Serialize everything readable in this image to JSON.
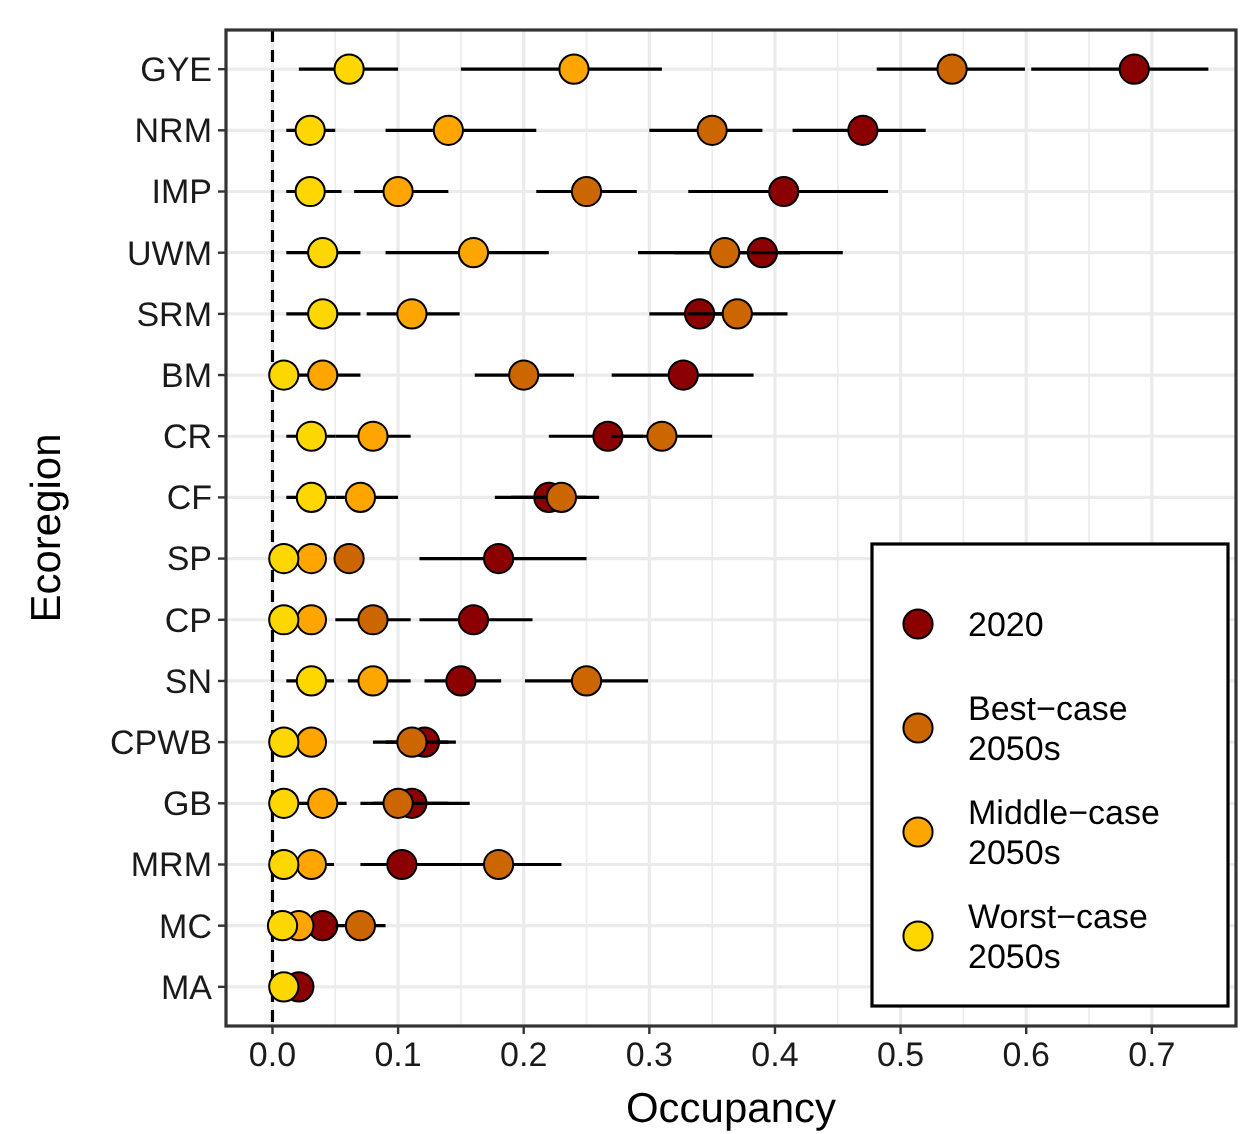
{
  "chart_data": {
    "type": "scatter",
    "orientation": "horizontal",
    "xlabel": "Occupancy",
    "ylabel": "Ecoregion",
    "categories": [
      "GYE",
      "NRM",
      "IMP",
      "UWM",
      "SRM",
      "BM",
      "CR",
      "CF",
      "SP",
      "CP",
      "SN",
      "CPWB",
      "GB",
      "MRM",
      "MC",
      "MA"
    ],
    "xlim": [
      -0.037,
      0.767
    ],
    "xticks": [
      {
        "value": 0,
        "label": "0.0"
      },
      0.1,
      0.2,
      0.3,
      0.4,
      0.5,
      0.6,
      {
        "value": 0.7,
        "label": "0.7"
      }
    ],
    "grid": true,
    "legend": "bottom right",
    "marker": "circle",
    "ref_lines": [
      {
        "axis": "x",
        "value": 0,
        "line_style": "dashed",
        "color": "#000000"
      }
    ],
    "series": [
      {
        "name": "2020",
        "color": "#8b0000",
        "values": [
          0.686,
          0.47,
          0.407,
          0.39,
          0.34,
          0.327,
          0.267,
          0.22,
          0.18,
          0.16,
          0.15,
          0.121,
          0.111,
          0.103,
          0.04,
          0.021
        ],
        "errors": [
          [
            0.604,
            0.745
          ],
          [
            0.414,
            0.52
          ],
          [
            0.331,
            0.49
          ],
          [
            0.32,
            0.454
          ],
          [
            0.3,
            0.38
          ],
          [
            0.27,
            0.383
          ],
          [
            0.22,
            0.295
          ],
          [
            0.177,
            0.25
          ],
          [
            0.117,
            0.25
          ],
          [
            0.117,
            0.207
          ],
          [
            0.121,
            0.182
          ],
          [
            0.09,
            0.146
          ],
          [
            0.08,
            0.157
          ],
          [
            0.07,
            0.15
          ],
          null,
          null
        ]
      },
      {
        "name": "Best−case 2050s",
        "color": "#cc6600",
        "values": [
          0.541,
          0.35,
          0.25,
          0.36,
          0.37,
          0.2,
          0.31,
          0.23,
          0.061,
          0.08,
          0.25,
          0.111,
          0.1,
          0.18,
          0.07,
          null
        ],
        "errors": [
          [
            0.481,
            0.599
          ],
          [
            0.3,
            0.39
          ],
          [
            0.21,
            0.29
          ],
          [
            0.291,
            0.42
          ],
          [
            0.33,
            0.41
          ],
          [
            0.161,
            0.24
          ],
          [
            0.27,
            0.35
          ],
          [
            0.19,
            0.26
          ],
          null,
          [
            0.05,
            0.11
          ],
          [
            0.201,
            0.299
          ],
          [
            0.08,
            0.14
          ],
          [
            0.07,
            0.14
          ],
          [
            0.13,
            0.23
          ],
          [
            0.05,
            0.09
          ],
          null
        ]
      },
      {
        "name": "Middle−case 2050s",
        "color": "#ffa500",
        "values": [
          0.24,
          0.14,
          0.1,
          0.16,
          0.111,
          0.04,
          0.08,
          0.07,
          0.031,
          0.031,
          0.08,
          0.031,
          0.04,
          0.031,
          0.021,
          null
        ],
        "errors": [
          [
            0.15,
            0.31
          ],
          [
            0.09,
            0.21
          ],
          [
            0.065,
            0.14
          ],
          [
            0.09,
            0.22
          ],
          [
            0.075,
            0.149
          ],
          [
            0.02,
            0.07
          ],
          [
            0.05,
            0.11
          ],
          [
            0.05,
            0.1
          ],
          null,
          null,
          [
            0.06,
            0.11
          ],
          null,
          [
            0.02,
            0.059
          ],
          [
            0.02,
            0.049
          ],
          null,
          null
        ]
      },
      {
        "name": "Worst−case 2050s",
        "color": "#ffd700",
        "values": [
          0.061,
          0.03,
          0.03,
          0.04,
          0.04,
          0.009,
          0.031,
          0.031,
          0.009,
          0.009,
          0.031,
          0.009,
          0.009,
          0.009,
          0.008,
          0.009
        ],
        "errors": [
          [
            0.021,
            0.1
          ],
          [
            0.011,
            0.05
          ],
          [
            0.011,
            0.055
          ],
          [
            0.011,
            0.07
          ],
          [
            0.011,
            0.07
          ],
          null,
          [
            0.011,
            0.05
          ],
          [
            0.011,
            0.05
          ],
          null,
          null,
          [
            0.011,
            0.049
          ],
          null,
          null,
          null,
          null,
          null
        ]
      }
    ]
  }
}
